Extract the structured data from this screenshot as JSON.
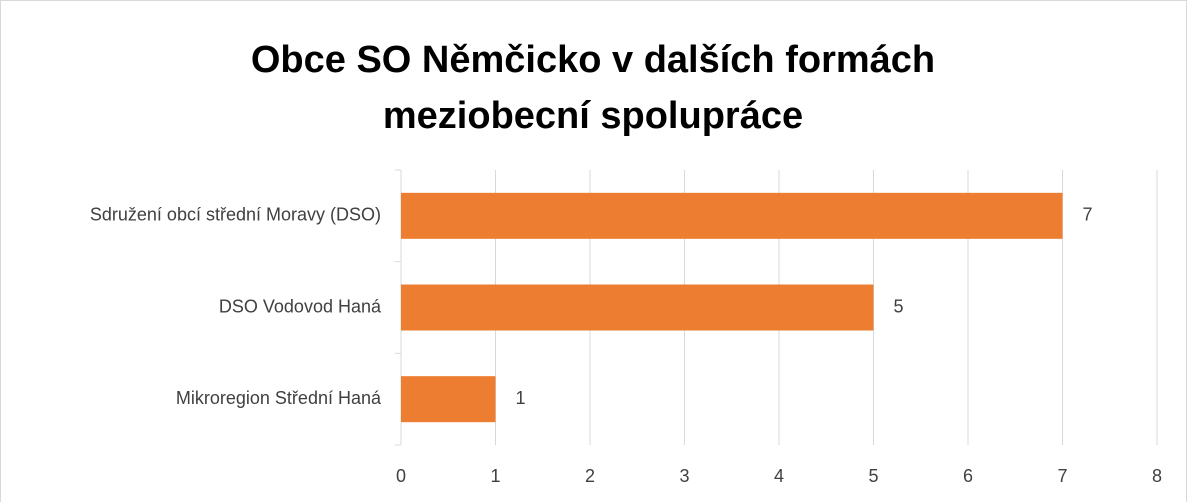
{
  "chart_data": {
    "type": "bar",
    "orientation": "horizontal",
    "title": "Obce SO Němčicko v dalších formách meziobecní spolupráce",
    "categories": [
      "Sdružení obcí střední Moravy (DSO)",
      "DSO Vodovod Haná",
      "Mikroregion Střední Haná"
    ],
    "values": [
      7,
      5,
      1
    ],
    "color": "#ed7d31",
    "xlim": [
      0,
      8
    ],
    "xticks": [
      0,
      1,
      2,
      3,
      4,
      5,
      6,
      7,
      8
    ],
    "grid": true,
    "data_labels": true
  }
}
